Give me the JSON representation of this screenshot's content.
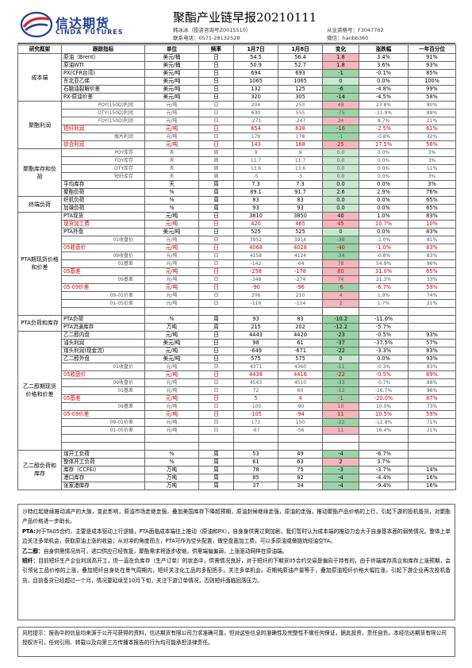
{
  "header": {
    "logo_cn": "信达期货",
    "logo_en": "CINDA FUTURES",
    "title": "聚酯产业链早报20210111",
    "analyst": "韩冰冰（投资咨询号Z0015510）",
    "phone": "联系电话：0571-28132528",
    "cert": "从业资格号：F3047762",
    "wechat": "微信：hanbb360"
  },
  "colors": {
    "positive_change": "#f4b6bd",
    "negative_change": "#9ad4a8",
    "zero_change": "#c9e8cf",
    "highlight_text": "#d00000",
    "logo_blue": "#1f3f8f",
    "logo_red": "#d6262e"
  },
  "table": {
    "columns": [
      "研究框架",
      "跟踪指标",
      "单位",
      "频率",
      "1月7日",
      "1月8日",
      "变化",
      "涨跌幅",
      "一年百分位"
    ],
    "rows": [
      {
        "cat": "成本端",
        "span": 6,
        "ind": "原油（Brent）",
        "unit": "美元/桶",
        "freq": "日",
        "v1": "54.5",
        "v2": "56.4",
        "chg": "1.8",
        "pct": "3.4%",
        "pctl": "91%",
        "style": "",
        "dir": "pos"
      },
      {
        "ind": "原油WTI",
        "unit": "美元/桶",
        "freq": "日",
        "v1": "50.9",
        "v2": "52.7",
        "chg": "1.8",
        "pct": "3.6%",
        "pctl": "93%",
        "style": "",
        "dir": "pos"
      },
      {
        "ind": "PX(CFR台湾)",
        "unit": "美元/吨",
        "freq": "日",
        "v1": "694",
        "v2": "693",
        "chg": "-1",
        "pct": "-0.1%",
        "pctl": "85%",
        "style": "",
        "dir": "neg"
      },
      {
        "ind": "东北亚乙烯",
        "unit": "美元/吨",
        "freq": "日",
        "v1": "1065",
        "v2": "1065",
        "chg": "0",
        "pct": "0.0%",
        "pctl": "100%",
        "style": "",
        "dir": "zero"
      },
      {
        "ind": "石脑油裂解价差",
        "unit": "美元/吨",
        "freq": "日",
        "v1": "132",
        "v2": "125",
        "chg": "-6",
        "pct": "-4.8%",
        "pctl": "99%",
        "style": "",
        "dir": "neg"
      },
      {
        "ind": "PX-原油价差",
        "unit": "美元/吨",
        "freq": "日",
        "v1": "320",
        "v2": "305",
        "chg": "-14",
        "pct": "-4.5%",
        "pctl": "58%",
        "style": "",
        "dir": "neg"
      },
      {
        "cat": "聚酯利润",
        "span": 6,
        "ind": "POY(150D)利润",
        "unit": "元/吨",
        "freq": "日",
        "v1": "204",
        "v2": "253",
        "chg": "49",
        "pct": "23.8%",
        "pctl": "80%",
        "style": "sub",
        "dir": "pos"
      },
      {
        "ind": "DTY(150D)利润",
        "unit": "元/吨",
        "freq": "日",
        "v1": "630",
        "v2": "555",
        "chg": "-75",
        "pct": "-11.9%",
        "pctl": "89%",
        "style": "sub",
        "dir": "neg"
      },
      {
        "ind": "FDY(150D)利润",
        "unit": "元/吨",
        "freq": "日",
        "v1": "-271",
        "v2": "-247",
        "chg": "24",
        "pct": "8.7%",
        "pctl": "21%",
        "style": "sub",
        "dir": "pos"
      },
      {
        "ind": "短纤利润",
        "unit": "元/吨",
        "freq": "日",
        "v1": "654",
        "v2": "638",
        "chg": "-16",
        "pct": "-2.5%",
        "pctl": "61%",
        "style": "red",
        "dir": "neg"
      },
      {
        "ind": "瓶片利润",
        "unit": "元/吨",
        "freq": "日",
        "v1": "179",
        "v2": "178",
        "chg": "-1",
        "pct": "-0.8%",
        "pctl": "32%",
        "style": "sub",
        "dir": "neg"
      },
      {
        "ind": "综合利润",
        "unit": "元/吨",
        "freq": "日",
        "v1": "143",
        "v2": "168",
        "chg": "25",
        "pct": "17.5%",
        "pctl": "56%",
        "style": "red",
        "dir": "pos"
      },
      {
        "cat": "聚酯库存和负荷",
        "span": 6,
        "ind": "POY库存",
        "unit": "天",
        "freq": "周",
        "v1": "9",
        "v2": "9",
        "chg": "0.0",
        "pct": "0.0%",
        "pctl": "3%",
        "style": "sub",
        "dir": "zero"
      },
      {
        "ind": "FDY库存",
        "unit": "天",
        "freq": "周",
        "v1": "11.7",
        "v2": "11.7",
        "chg": "0.0",
        "pct": "0.0%",
        "pctl": "3%",
        "style": "sub",
        "dir": "zero"
      },
      {
        "ind": "DTY库存",
        "unit": "天",
        "freq": "周",
        "v1": "13.6",
        "v2": "13.6",
        "chg": "0.0",
        "pct": "0.0%",
        "pctl": "11%",
        "style": "sub",
        "dir": "zero"
      },
      {
        "ind": "短纤库存",
        "unit": "天",
        "freq": "周",
        "v1": "-5",
        "v2": "-5",
        "chg": "0.0",
        "pct": "0.0%",
        "pctl": "3%",
        "style": "sub",
        "dir": "zero"
      },
      {
        "ind": "平均库存",
        "unit": "天",
        "freq": "周",
        "v1": "7.3",
        "v2": "7.3",
        "chg": "0.0",
        "pct": "0.0%",
        "pctl": "3%",
        "style": "",
        "dir": "zero"
      },
      {
        "ind": "聚酯负荷",
        "unit": "%",
        "freq": "周",
        "v1": "89.1",
        "v2": "91.7",
        "chg": "2.6",
        "pct": "2.9%",
        "pctl": "76%",
        "style": "",
        "dir": "zero"
      },
      {
        "cat": "终端负荷",
        "span": 2,
        "ind": "织机负荷",
        "unit": "%",
        "freq": "周",
        "v1": "83",
        "v2": "83",
        "chg": "0.0",
        "pct": "0.0%",
        "pctl": "65%",
        "style": "",
        "dir": "zero"
      },
      {
        "ind": "加弹负荷",
        "unit": "%",
        "freq": "周",
        "v1": "93",
        "v2": "93",
        "chg": "0.0",
        "pct": "0.0%",
        "pctl": "65%",
        "style": "",
        "dir": "zero"
      },
      {
        "cat": "PTA期现货价格和价差",
        "span": 13,
        "ind": "PTA现货",
        "unit": "元/吨",
        "freq": "日",
        "v1": "3810",
        "v2": "3850",
        "chg": "40",
        "pct": "1.0%",
        "pctl": "83%",
        "style": "",
        "dir": "pos"
      },
      {
        "ind": "现货加工费",
        "unit": "元/吨",
        "freq": "日",
        "v1": "420",
        "v2": "465",
        "chg": "45",
        "pct": "10.7%",
        "pctl": "10%",
        "style": "red",
        "dir": "pos"
      },
      {
        "ind": "PTA外盘",
        "unit": "美元/吨",
        "freq": "日",
        "v1": "525",
        "v2": "525",
        "chg": "0",
        "pct": "0.0%",
        "pctl": "83%",
        "style": "",
        "dir": "zero"
      },
      {
        "ind": "01收盘价",
        "unit": "元/吨",
        "freq": "日",
        "v1": "3952",
        "v2": "3914",
        "chg": "-38",
        "pct": "-1.0%",
        "pctl": "81%",
        "style": "sub",
        "dir": "neg"
      },
      {
        "ind": "05收盘价",
        "unit": "元/吨",
        "freq": "日",
        "v1": "4068",
        "v2": "4028",
        "chg": "-40",
        "pct": "-1.0%",
        "pctl": "83%",
        "style": "red",
        "dir": "neg"
      },
      {
        "ind": "09收盘价",
        "unit": "元/吨",
        "freq": "日",
        "v1": "4158",
        "v2": "4124",
        "chg": "-34",
        "pct": "-0.8%",
        "pctl": "83%",
        "style": "sub",
        "dir": "neg"
      },
      {
        "ind": "01基差",
        "unit": "元/吨",
        "freq": "日",
        "v1": "-142",
        "v2": "-64",
        "chg": "78",
        "pct": "54.9%",
        "pctl": "96%",
        "style": "sub",
        "dir": "pos"
      },
      {
        "ind": "05基差",
        "unit": "元/吨",
        "freq": "日",
        "v1": "-258",
        "v2": "-178",
        "chg": "80",
        "pct": "31.0%",
        "pctl": "65%",
        "style": "red",
        "dir": "pos"
      },
      {
        "ind": "09基差",
        "unit": "元/吨",
        "freq": "日",
        "v1": "-348",
        "v2": "-274",
        "chg": "74",
        "pct": "21.3%",
        "pctl": "33%",
        "style": "sub",
        "dir": "pos"
      },
      {
        "ind": "05-09价差",
        "unit": "元/吨",
        "freq": "日",
        "v1": "-90",
        "v2": "-96",
        "chg": "-6",
        "pct": "-6.7%",
        "pctl": "59%",
        "style": "red",
        "dir": "neg"
      },
      {
        "ind": "09-01价差",
        "unit": "元/吨",
        "freq": "日",
        "v1": "206",
        "v2": "210",
        "chg": "4",
        "pct": "1.9%",
        "pctl": "74%",
        "style": "sub",
        "dir": "pos"
      },
      {
        "ind": "01-05价差",
        "unit": "元/吨",
        "freq": "日",
        "v1": "-116",
        "v2": "-114",
        "chg": "2",
        "pct": "1.7%",
        "pctl": "21%",
        "style": "sub",
        "dir": "pos"
      },
      {
        "ind": "",
        "unit": "",
        "freq": "",
        "v1": "",
        "v2": "",
        "chg": "",
        "pct": "",
        "pctl": "",
        "style": "",
        "dir": "none"
      },
      {
        "cat": "PTA负荷和库存",
        "span": 2,
        "ind": "PTA负荷",
        "unit": "%",
        "freq": "周",
        "v1": "93",
        "v2": "83",
        "chg": "-10.2",
        "pct": "-11.0%",
        "pctl": "",
        "style": "",
        "dir": "neg"
      },
      {
        "ind": "PTA流通库存",
        "unit": "万吨",
        "freq": "周",
        "v1": "215",
        "v2": "202",
        "chg": "-12.2",
        "pct": "-5.7%",
        "pctl": "",
        "style": "",
        "dir": "neg"
      },
      {
        "cat": "乙二醇期现货价格和价差",
        "span": 15,
        "ind": "乙二醇内盘",
        "unit": "元/吨",
        "freq": "日",
        "v1": "4443",
        "v2": "4420",
        "chg": "-23",
        "pct": "-0.5%",
        "pctl": "93%",
        "style": "",
        "dir": "neg"
      },
      {
        "ind": "油头利润",
        "unit": "美元/吨",
        "freq": "日",
        "v1": "98",
        "v2": "61",
        "chg": "-37",
        "pct": "-37.5%",
        "pctl": "57%",
        "style": "",
        "dir": "neg"
      },
      {
        "ind": "煤头利润(现金流)",
        "unit": "元/吨",
        "freq": "日",
        "v1": "-649",
        "v2": "-671",
        "chg": "-22",
        "pct": "-3.3%",
        "pctl": "83%",
        "style": "",
        "dir": "neg"
      },
      {
        "ind": "乙二醇外盘",
        "unit": "美元/吨",
        "freq": "日",
        "v1": "575",
        "v2": "575",
        "chg": "0",
        "pct": "0.0%",
        "pctl": "93%",
        "style": "",
        "dir": "zero"
      },
      {
        "ind": "01收盘价",
        "unit": "元/吨",
        "freq": "日",
        "v1": "4371",
        "v2": "4360",
        "chg": "-11",
        "pct": "-0.3%",
        "pctl": "83%",
        "style": "sub",
        "dir": "neg"
      },
      {
        "ind": "05收盘价",
        "unit": "元/吨",
        "freq": "日",
        "v1": "4438",
        "v2": "4416",
        "chg": "-22",
        "pct": "-0.5%",
        "pctl": "89%",
        "style": "red",
        "dir": "neg"
      },
      {
        "ind": "09收盘价",
        "unit": "元/吨",
        "freq": "日",
        "v1": "4543",
        "v2": "4510",
        "chg": "-33",
        "pct": "-0.7%",
        "pctl": "88%",
        "style": "sub",
        "dir": "neg"
      },
      {
        "ind": "01基差",
        "unit": "元/吨",
        "freq": "日",
        "v1": "72",
        "v2": "60",
        "chg": "-12",
        "pct": "-16.7%",
        "pctl": "96%",
        "style": "sub",
        "dir": "neg"
      },
      {
        "ind": "05基差",
        "unit": "元/吨",
        "freq": "日",
        "v1": "5",
        "v2": "4",
        "chg": "-1",
        "pct": "-20.0%",
        "pctl": "87%",
        "style": "red",
        "dir": "neg"
      },
      {
        "ind": "09基差",
        "unit": "元/吨",
        "freq": "日",
        "v1": "-100",
        "v2": "-90",
        "chg": "10",
        "pct": "10.0%",
        "pctl": "73%",
        "style": "sub",
        "dir": "pos"
      },
      {
        "ind": "05-09价差",
        "unit": "元/吨",
        "freq": "日",
        "v1": "-105",
        "v2": "-94",
        "chg": "11",
        "pct": "10.5%",
        "pctl": "59%",
        "style": "red",
        "dir": "pos"
      },
      {
        "ind": "09-01价差",
        "unit": "元/吨",
        "freq": "日",
        "v1": "172",
        "v2": "150",
        "chg": "-22",
        "pct": "-12.8%",
        "pctl": "71%",
        "style": "sub",
        "dir": "neg"
      },
      {
        "ind": "01-05价差",
        "unit": "元/吨",
        "freq": "日",
        "v1": "-67",
        "v2": "-56",
        "chg": "11",
        "pct": "16.4%",
        "pctl": "21%",
        "style": "sub",
        "dir": "pos"
      },
      {
        "ind": "",
        "unit": "",
        "freq": "",
        "v1": "",
        "v2": "",
        "chg": "",
        "pct": "",
        "pctl": "",
        "style": "",
        "dir": "none"
      },
      {
        "ind": "",
        "unit": "",
        "freq": "",
        "v1": "",
        "v2": "",
        "chg": "",
        "pct": "",
        "pctl": "",
        "style": "",
        "dir": "none"
      },
      {
        "cat": "乙二醇负荷和库存",
        "span": 5,
        "ind": "煤开工负荷",
        "unit": "%",
        "freq": "周",
        "v1": "53",
        "v2": "49",
        "chg": "-4",
        "pct": "-6.7%",
        "pctl": "",
        "style": "",
        "dir": "neg"
      },
      {
        "ind": "整体开工负荷",
        "unit": "%",
        "freq": "周",
        "v1": "61",
        "v2": "63",
        "chg": "2",
        "pct": "3.7%",
        "pctl": "",
        "style": "",
        "dir": "pos"
      },
      {
        "ind": "库存（CCFEI）",
        "unit": "万吨",
        "freq": "周",
        "v1": "78",
        "v2": "75",
        "chg": "-3",
        "pct": "-3.7%",
        "pctl": "14%",
        "style": "",
        "dir": "neg"
      },
      {
        "ind": "港口库存",
        "unit": "万吨",
        "freq": "周",
        "v1": "85",
        "v2": "82",
        "chg": "-4",
        "pct": "-4.4%",
        "pctl": "16%",
        "style": "",
        "dir": "neg"
      },
      {
        "ind": "张家港库存",
        "unit": "万吨",
        "freq": "周",
        "v1": "37",
        "v2": "34",
        "chg": "-4",
        "pct": "-9.4%",
        "pctl": "16%",
        "style": "",
        "dir": "neg"
      }
    ]
  },
  "commentary": {
    "p1": "沙特扛起继续推动减产的大旗，变此影响，原油市场走继走强，叠加美国库存下降超预期，原油封候继续走强，原油的走强，推动聚酯产品价格的上行，引起下游的投机备货，对聚酯产品价格进一步助长。",
    "p2_label": "PTA:",
    "p2": "对于TA05合约，主要是成本驱动上行逻辑，PTA面临成本端往上推动（原油和PX），自身身供需过剩加剧，我们暂时认为成本端的推动力会大于自身基本面的弱势情况。整体上单边关注多单机会，获取原油上涨的收益；从对冲的角度而言，PTA可作为空头配置，做空盘面加工费，可以多原油或做链烷烃油空TA。",
    "p3_label": "乙二醇：",
    "p3": "自身供需情况尚可，进口供应已经恢复，聚酯需求将逐步收缩，供需端偏偏弱，上涨驱动网样在原油端。",
    "p4_label": "短纤：",
    "p4": "目前短纤生产企业利润高开工，但一直在负库存（生产订单）的状态中，供需情况良好，对于短纤的下期货05合约交易是偏向于持有的，由于终端库存高企和库存上涨预期，会引领化工品价格的上涨，叠加短纤自身处在景气周期内，短纤关注化工品的多配把手，关注多单机会。近期纯原油产量等于，叠加原油短纤价格大幅拉涨，引起下游企业再次投机备货，目前备货已经超过一个月，情况要延续至10月下旬，关注下游订单情况，否则短纤面临回落压力。"
  },
  "disclaimer": {
    "text": "风险提示：报告中的信息均来源于公开可获得的资料，信达期货有限公司力求准确可靠，但对这些信息的准确性及完整性不做任何保证，据此投资，责任自负。本经信达期货有限公司授权许可，任何引用、转载以及向第三方传播本报告的行为均可能承担法律责任。"
  }
}
